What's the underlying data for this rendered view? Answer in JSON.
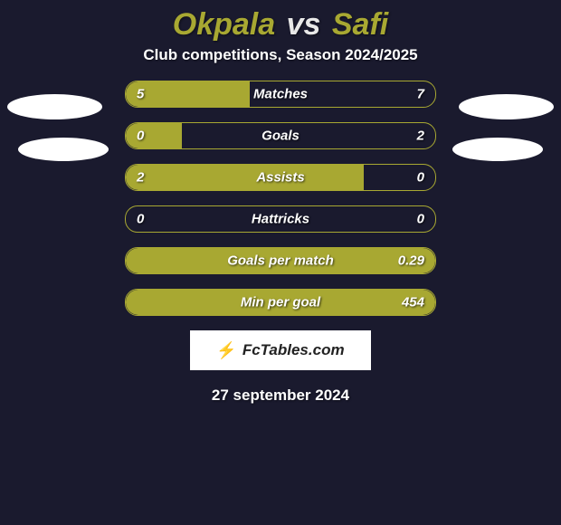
{
  "title": {
    "player1": "Okpala",
    "vs": "vs",
    "player2": "Safi"
  },
  "subtitle": "Club competitions, Season 2024/2025",
  "background_color": "#1a1a2e",
  "accent_color": "#a8a832",
  "text_color": "#ffffff",
  "ellipse_color": "#ffffff",
  "stats": [
    {
      "label": "Matches",
      "left_value": "5",
      "right_value": "7",
      "fill_side": "left",
      "fill_percent": 40
    },
    {
      "label": "Goals",
      "left_value": "0",
      "right_value": "2",
      "fill_side": "left",
      "fill_percent": 18
    },
    {
      "label": "Assists",
      "left_value": "2",
      "right_value": "0",
      "fill_side": "left",
      "fill_percent": 77
    },
    {
      "label": "Hattricks",
      "left_value": "0",
      "right_value": "0",
      "fill_side": "none",
      "fill_percent": 0
    },
    {
      "label": "Goals per match",
      "left_value": "",
      "right_value": "0.29",
      "fill_side": "full",
      "fill_percent": 100
    },
    {
      "label": "Min per goal",
      "left_value": "",
      "right_value": "454",
      "fill_side": "full",
      "fill_percent": 100
    }
  ],
  "logo": {
    "icon": "⚡",
    "text": "FcTables.com"
  },
  "date": "27 september 2024",
  "font": {
    "title_size": 34,
    "subtitle_size": 17,
    "bar_label_size": 15,
    "logo_size": 17,
    "date_size": 17
  }
}
